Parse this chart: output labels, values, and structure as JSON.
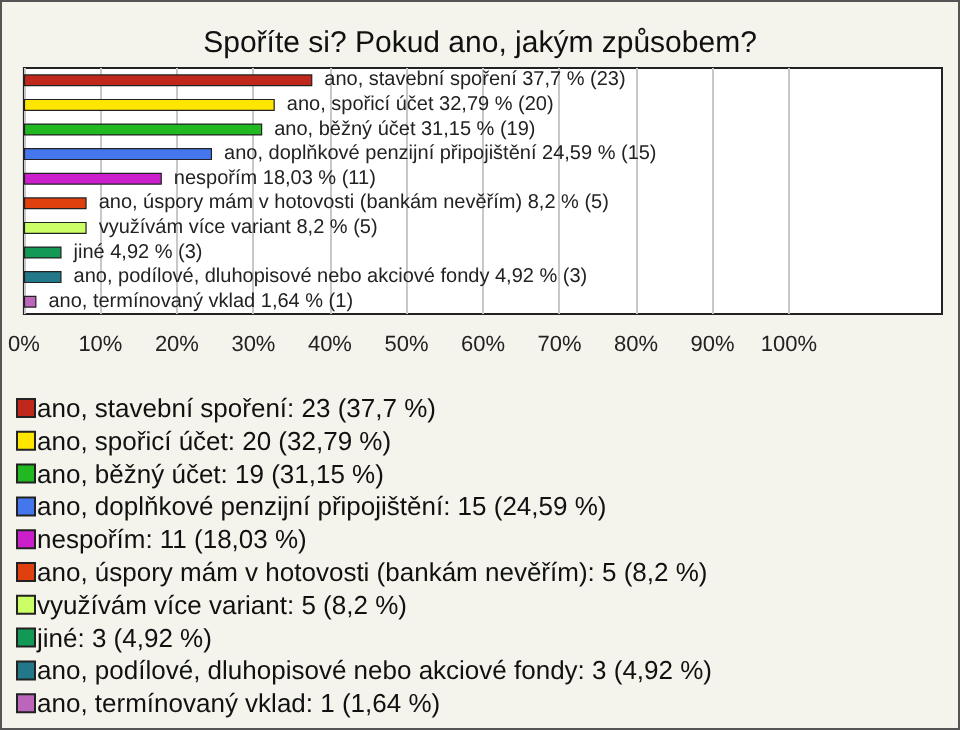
{
  "chart_data": {
    "type": "bar",
    "orientation": "horizontal",
    "title": "Spoříte si? Pokud ano, jakým způsobem?",
    "categories": [
      null,
      null,
      null,
      null,
      null,
      null,
      null,
      null,
      null,
      null
    ],
    "xlim": [
      0,
      120
    ],
    "xticks": [
      {
        "value": 0,
        "label": "0%"
      },
      {
        "value": 10,
        "label": "10%"
      },
      {
        "value": 20,
        "label": "20%"
      },
      {
        "value": 30,
        "label": "30%"
      },
      {
        "value": 40,
        "label": "40%"
      },
      {
        "value": 50,
        "label": "50%"
      },
      {
        "value": 60,
        "label": "60%"
      },
      {
        "value": 70,
        "label": "70%"
      },
      {
        "value": 80,
        "label": "80%"
      },
      {
        "value": 90,
        "label": "90%"
      },
      {
        "value": 100,
        "label": "100%"
      }
    ],
    "grid": "x",
    "legend": "bottom",
    "tick_labels": "x",
    "series": [
      {
        "name": "ano, stavební spoření: 23 (37,7 %)",
        "color": "#c0281c",
        "values": [
          37.7,
          null,
          null,
          null,
          null,
          null,
          null,
          null,
          null,
          null
        ],
        "value_labels": [
          "ano, stavební spoření 37,7 % (23)",
          null,
          null,
          null,
          null,
          null,
          null,
          null,
          null,
          null
        ]
      },
      {
        "name": "ano, spořicí účet: 20 (32,79 %)",
        "color": "#ffe600",
        "values": [
          null,
          32.79,
          null,
          null,
          null,
          null,
          null,
          null,
          null,
          null
        ],
        "value_labels": [
          null,
          "ano, spořicí účet 32,79 % (20)",
          null,
          null,
          null,
          null,
          null,
          null,
          null,
          null
        ]
      },
      {
        "name": "ano, běžný účet: 19 (31,15 %)",
        "color": "#22b822",
        "values": [
          null,
          null,
          31.15,
          null,
          null,
          null,
          null,
          null,
          null,
          null
        ],
        "value_labels": [
          null,
          null,
          "ano, běžný účet 31,15 % (19)",
          null,
          null,
          null,
          null,
          null,
          null,
          null
        ]
      },
      {
        "name": "ano, doplňkové penzijní připojištění: 15 (24,59 %)",
        "color": "#4477ee",
        "values": [
          null,
          null,
          null,
          24.59,
          null,
          null,
          null,
          null,
          null,
          null
        ],
        "value_labels": [
          null,
          null,
          null,
          "ano, doplňkové penzijní připojištění 24,59 % (15)",
          null,
          null,
          null,
          null,
          null,
          null
        ]
      },
      {
        "name": "nespořím: 11 (18,03 %)",
        "color": "#cc1fcc",
        "values": [
          null,
          null,
          null,
          null,
          18.03,
          null,
          null,
          null,
          null,
          null
        ],
        "value_labels": [
          null,
          null,
          null,
          null,
          "nespořím 18,03 % (11)",
          null,
          null,
          null,
          null,
          null
        ]
      },
      {
        "name": "ano, úspory mám v hotovosti (bankám nevěřím): 5 (8,2 %)",
        "color": "#e0400e",
        "values": [
          null,
          null,
          null,
          null,
          null,
          8.2,
          null,
          null,
          null,
          null
        ],
        "value_labels": [
          null,
          null,
          null,
          null,
          null,
          "ano, úspory mám v hotovosti (bankám nevěřím) 8,2 % (5)",
          null,
          null,
          null,
          null
        ]
      },
      {
        "name": "využívám více variant: 5 (8,2 %)",
        "color": "#ccff66",
        "values": [
          null,
          null,
          null,
          null,
          null,
          null,
          8.2,
          null,
          null,
          null
        ],
        "value_labels": [
          null,
          null,
          null,
          null,
          null,
          null,
          "využívám více variant 8,2 % (5)",
          null,
          null,
          null
        ]
      },
      {
        "name": "jiné: 3 (4,92 %)",
        "color": "#119955",
        "values": [
          null,
          null,
          null,
          null,
          null,
          null,
          null,
          4.92,
          null,
          null
        ],
        "value_labels": [
          null,
          null,
          null,
          null,
          null,
          null,
          null,
          "jiné 4,92 % (3)",
          null,
          null
        ]
      },
      {
        "name": "ano, podílové, dluhopisové nebo akciové fondy: 3 (4,92 %)",
        "color": "#227788",
        "values": [
          null,
          null,
          null,
          null,
          null,
          null,
          null,
          null,
          4.92,
          null
        ],
        "value_labels": [
          null,
          null,
          null,
          null,
          null,
          null,
          null,
          null,
          "ano, podílové, dluhopisové nebo akciové fondy 4,92 % (3)",
          null
        ]
      },
      {
        "name": "ano, termínovaný vklad: 1 (1,64 %)",
        "color": "#bb66bb",
        "values": [
          null,
          null,
          null,
          null,
          null,
          null,
          null,
          null,
          null,
          1.64
        ],
        "value_labels": [
          null,
          null,
          null,
          null,
          null,
          null,
          null,
          null,
          null,
          "ano, termínovaný vklad 1,64 % (1)"
        ]
      }
    ]
  }
}
